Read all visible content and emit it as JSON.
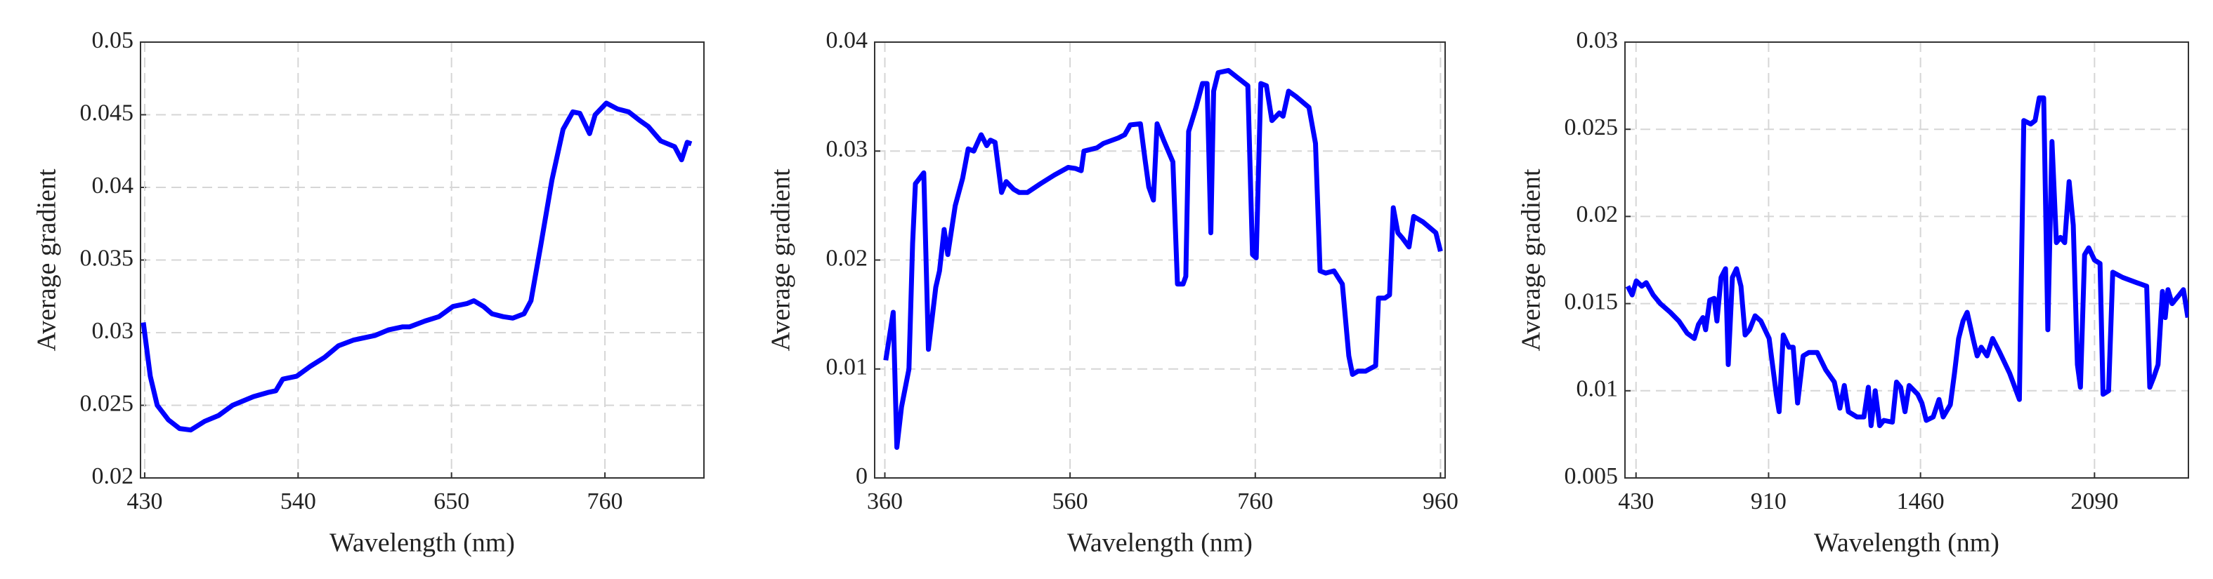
{
  "chart_data": [
    {
      "type": "line",
      "xlabel": "Wavelength (nm)",
      "ylabel": "Average gradient",
      "color": "#0000ff",
      "grid": true,
      "xlim": [
        427,
        831
      ],
      "xticks": [
        430,
        540,
        650,
        760
      ],
      "ylim": [
        0.02,
        0.05
      ],
      "yticks": [
        0.02,
        0.025,
        0.03,
        0.035,
        0.04,
        0.045,
        0.05
      ],
      "x": [
        429,
        434,
        439,
        447,
        455,
        463,
        473,
        483,
        493,
        508,
        519,
        524,
        529,
        539,
        549,
        559,
        569,
        580,
        595,
        605,
        615,
        620,
        631,
        641,
        651,
        661,
        666,
        673,
        679,
        687,
        694,
        702,
        707,
        714,
        722,
        730,
        737,
        742,
        749,
        753,
        761,
        769,
        777,
        785,
        791,
        800,
        810,
        815,
        819,
        822
      ],
      "values": [
        0.0307,
        0.027,
        0.025,
        0.024,
        0.0234,
        0.0233,
        0.0239,
        0.0243,
        0.025,
        0.0256,
        0.0259,
        0.026,
        0.0268,
        0.027,
        0.0277,
        0.0283,
        0.0291,
        0.0295,
        0.0298,
        0.0302,
        0.0304,
        0.0304,
        0.0308,
        0.0311,
        0.0318,
        0.032,
        0.0322,
        0.0318,
        0.0313,
        0.0311,
        0.031,
        0.0313,
        0.0322,
        0.036,
        0.0405,
        0.044,
        0.0452,
        0.0451,
        0.0437,
        0.045,
        0.0458,
        0.0454,
        0.0452,
        0.0446,
        0.0442,
        0.0432,
        0.0428,
        0.0419,
        0.0431,
        0.043
      ]
    },
    {
      "type": "line",
      "xlabel": "Wavelength (nm)",
      "ylabel": "Average gradient",
      "color": "#0000ff",
      "grid": true,
      "xlim": [
        349,
        965
      ],
      "xticks": [
        360,
        560,
        760,
        960
      ],
      "ylim": [
        0,
        0.04
      ],
      "yticks": [
        0,
        0.01,
        0.02,
        0.03,
        0.04
      ],
      "x": [
        361,
        369,
        373,
        378,
        386,
        390,
        393,
        402,
        407,
        415,
        419,
        424,
        428,
        436,
        444,
        450,
        456,
        464,
        470,
        474,
        479,
        486,
        491,
        499,
        505,
        514,
        528,
        543,
        558,
        566,
        572,
        575,
        589,
        596,
        612,
        619,
        625,
        636,
        641,
        645,
        650,
        654,
        661,
        671,
        676,
        682,
        685,
        688,
        696,
        703,
        708,
        712,
        715,
        720,
        731,
        740,
        752,
        757,
        761,
        766,
        772,
        778,
        786,
        790,
        796,
        804,
        818,
        825,
        830,
        836,
        845,
        854,
        861,
        865,
        871,
        879,
        890,
        893,
        900,
        905,
        909,
        914,
        919,
        926,
        931,
        941,
        955,
        960
      ],
      "values": [
        0.0108,
        0.0152,
        0.0028,
        0.0065,
        0.01,
        0.0215,
        0.027,
        0.028,
        0.0118,
        0.0175,
        0.019,
        0.0228,
        0.0205,
        0.025,
        0.0275,
        0.0302,
        0.03,
        0.0315,
        0.0305,
        0.031,
        0.0308,
        0.0262,
        0.0272,
        0.0265,
        0.0262,
        0.0262,
        0.027,
        0.0278,
        0.0285,
        0.0284,
        0.0282,
        0.03,
        0.0303,
        0.0307,
        0.0312,
        0.0315,
        0.0324,
        0.0325,
        0.0292,
        0.0267,
        0.0255,
        0.0325,
        0.031,
        0.029,
        0.0178,
        0.0178,
        0.0185,
        0.0318,
        0.034,
        0.0362,
        0.0362,
        0.0225,
        0.0355,
        0.0372,
        0.0374,
        0.0368,
        0.036,
        0.0205,
        0.0202,
        0.0362,
        0.036,
        0.0328,
        0.0335,
        0.0332,
        0.0355,
        0.035,
        0.034,
        0.0307,
        0.019,
        0.0188,
        0.019,
        0.0178,
        0.0112,
        0.0095,
        0.0098,
        0.0098,
        0.0103,
        0.0165,
        0.0165,
        0.0168,
        0.0248,
        0.0225,
        0.022,
        0.0212,
        0.024,
        0.0235,
        0.0225,
        0.0208
      ]
    },
    {
      "type": "line",
      "xlabel": "Wavelength (nm)",
      "ylabel": "Average gradient",
      "color": "#0000ff",
      "grid": true,
      "xlim": [
        390,
        2430
      ],
      "xticks": [
        430,
        910,
        1460,
        2090
      ],
      "ylim": [
        0.005,
        0.03
      ],
      "yticks": [
        0.005,
        0.01,
        0.015,
        0.02,
        0.025,
        0.03
      ],
      "x": [
        400,
        416,
        431,
        451,
        467,
        492,
        518,
        554,
        585,
        615,
        641,
        656,
        672,
        682,
        697,
        713,
        723,
        738,
        754,
        764,
        779,
        794,
        810,
        825,
        841,
        861,
        882,
        912,
        938,
        948,
        963,
        984,
        999,
        1015,
        1035,
        1056,
        1086,
        1117,
        1148,
        1168,
        1184,
        1199,
        1230,
        1255,
        1271,
        1281,
        1296,
        1312,
        1327,
        1358,
        1373,
        1388,
        1404,
        1419,
        1450,
        1465,
        1481,
        1506,
        1527,
        1542,
        1568,
        1583,
        1598,
        1614,
        1629,
        1650,
        1665,
        1680,
        1701,
        1721,
        1747,
        1783,
        1818,
        1834,
        1859,
        1875,
        1890,
        1906,
        1921,
        1936,
        1952,
        1967,
        1982,
        1998,
        2013,
        2028,
        2039,
        2054,
        2069,
        2090,
        2110,
        2121,
        2141,
        2156,
        2192,
        2243,
        2279,
        2290,
        2305,
        2320,
        2336,
        2346,
        2356,
        2371,
        2397,
        2412,
        2428
      ],
      "values": [
        0.016,
        0.0155,
        0.0163,
        0.016,
        0.0162,
        0.0155,
        0.015,
        0.0145,
        0.014,
        0.0133,
        0.013,
        0.0138,
        0.0142,
        0.0135,
        0.0152,
        0.0153,
        0.014,
        0.0165,
        0.017,
        0.0115,
        0.0165,
        0.017,
        0.016,
        0.0132,
        0.0135,
        0.0143,
        0.014,
        0.013,
        0.0098,
        0.0088,
        0.0132,
        0.0125,
        0.0125,
        0.0093,
        0.012,
        0.0122,
        0.0122,
        0.0112,
        0.0105,
        0.009,
        0.0103,
        0.0088,
        0.0085,
        0.0085,
        0.0102,
        0.008,
        0.01,
        0.008,
        0.0083,
        0.0082,
        0.0105,
        0.0102,
        0.0088,
        0.0103,
        0.0098,
        0.0093,
        0.0083,
        0.0085,
        0.0095,
        0.0085,
        0.0092,
        0.011,
        0.013,
        0.014,
        0.0145,
        0.013,
        0.012,
        0.0125,
        0.012,
        0.013,
        0.0122,
        0.011,
        0.0095,
        0.0255,
        0.0253,
        0.0255,
        0.0268,
        0.0268,
        0.0135,
        0.0243,
        0.0185,
        0.0188,
        0.0185,
        0.022,
        0.0195,
        0.0115,
        0.0102,
        0.0178,
        0.0182,
        0.0175,
        0.0173,
        0.0098,
        0.01,
        0.0168,
        0.0165,
        0.0162,
        0.016,
        0.0102,
        0.0108,
        0.0115,
        0.0157,
        0.0142,
        0.0158,
        0.015,
        0.0155,
        0.0158,
        0.0142
      ]
    }
  ]
}
